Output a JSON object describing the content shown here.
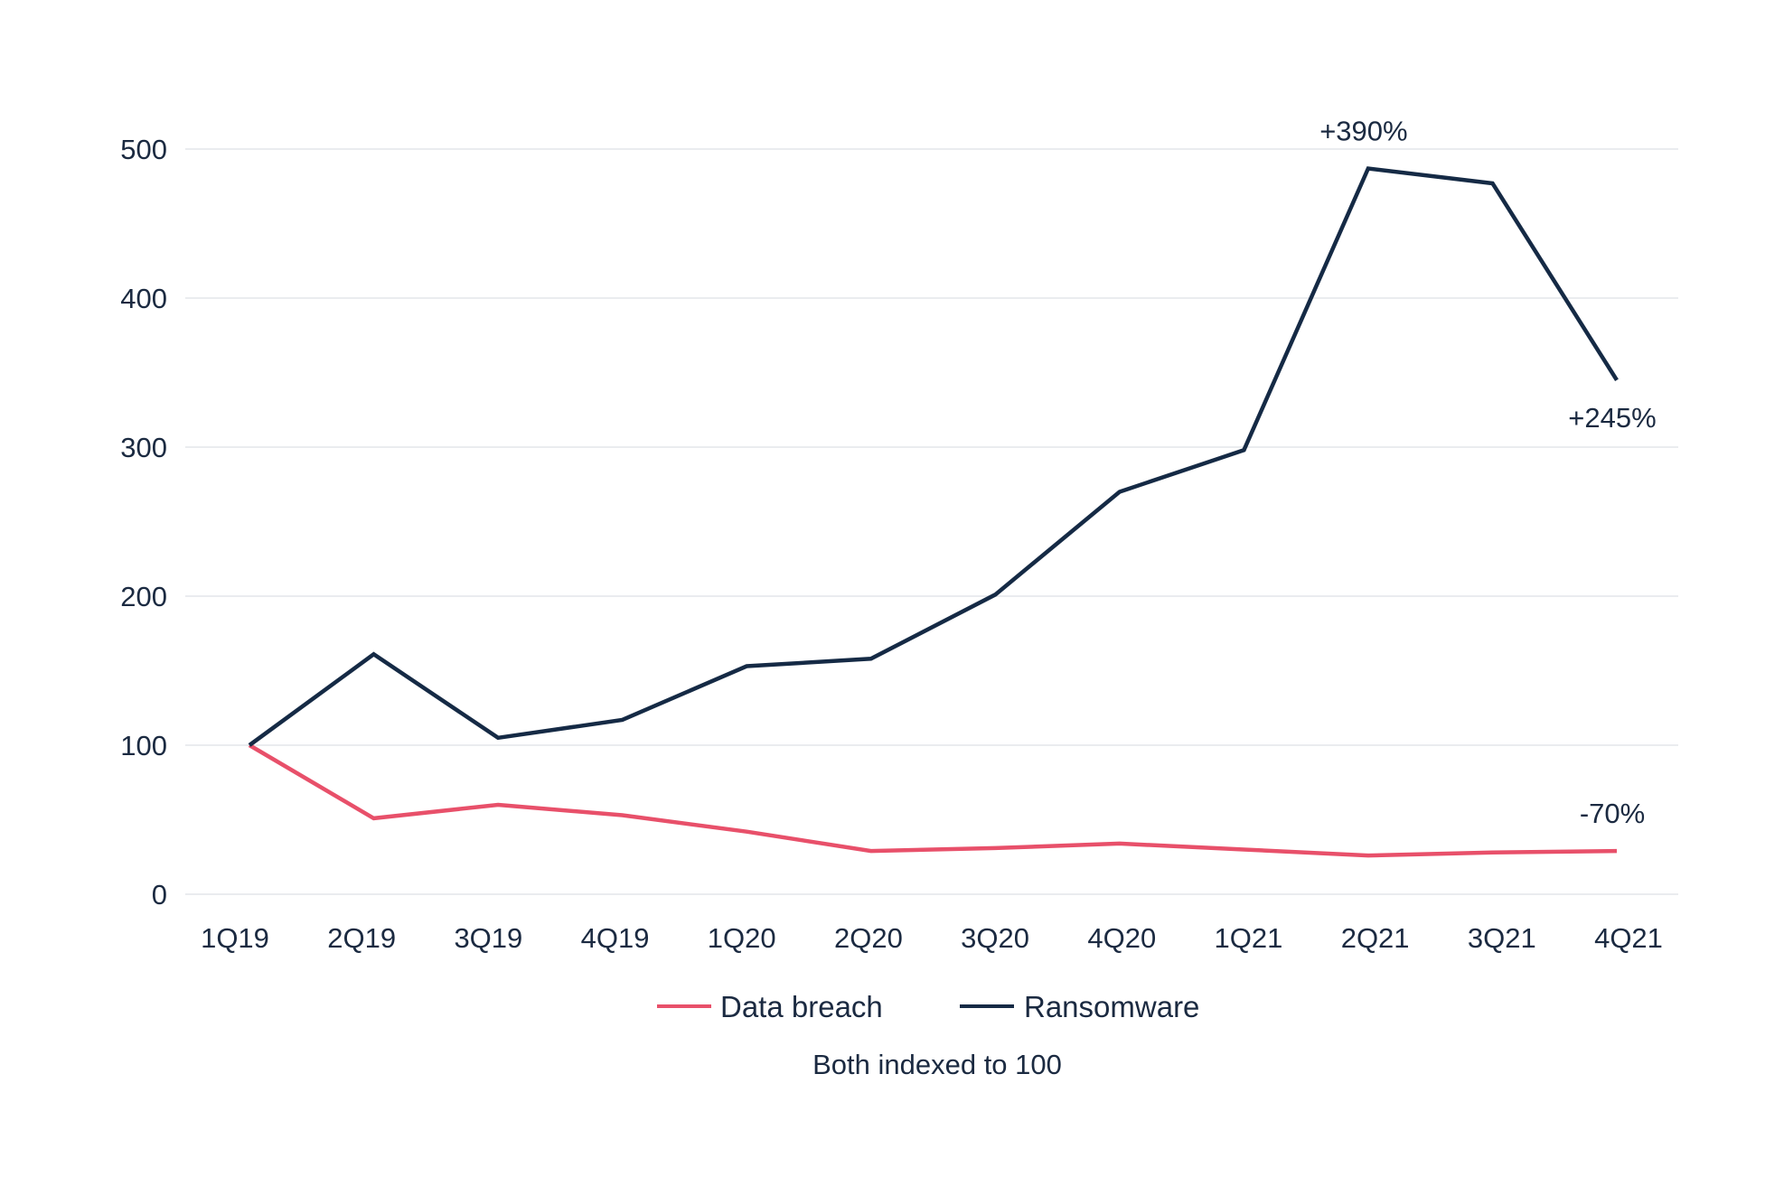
{
  "chart_data": {
    "type": "line",
    "title": "",
    "xlabel": "",
    "ylabel": "",
    "categories": [
      "1Q19",
      "2Q19",
      "3Q19",
      "4Q19",
      "1Q20",
      "2Q20",
      "3Q20",
      "4Q20",
      "1Q21",
      "2Q21",
      "3Q21",
      "4Q21"
    ],
    "y_ticks": [
      0,
      100,
      200,
      300,
      400,
      500
    ],
    "y_tick_labels": [
      "0",
      "100",
      "200",
      "300",
      "400",
      "500"
    ],
    "ylim": [
      0,
      500
    ],
    "grid": true,
    "series": [
      {
        "name": "Data breach",
        "color": "#e8506a",
        "values": [
          100,
          51,
          60,
          53,
          42,
          29,
          31,
          34,
          30,
          26,
          28,
          29
        ]
      },
      {
        "name": "Ransomware",
        "color": "#152a45",
        "values": [
          100,
          161,
          105,
          117,
          153,
          158,
          201,
          270,
          298,
          487,
          477,
          345
        ]
      }
    ],
    "annotations": [
      {
        "series": 1,
        "index": 9,
        "text": "+390%",
        "placement": "above"
      },
      {
        "series": 1,
        "index": 11,
        "text": "+245%",
        "placement": "below"
      },
      {
        "series": 0,
        "index": 11,
        "text": "-70%",
        "placement": "above"
      }
    ],
    "legend": {
      "placement": "bottom-center",
      "entries": [
        "Data breach",
        "Ransomware"
      ]
    },
    "note": "Both indexed to 100"
  }
}
